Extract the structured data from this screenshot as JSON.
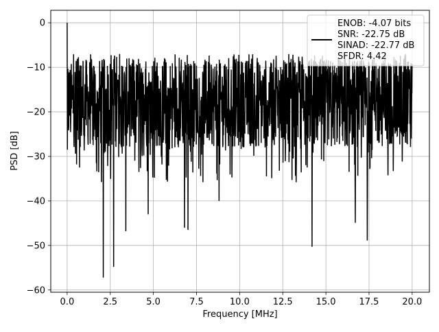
{
  "chart_data": {
    "type": "line",
    "xlabel": "Frequency [MHz]",
    "ylabel": "PSD [dB]",
    "xlim": [
      -0.95,
      21.0
    ],
    "ylim": [
      -60.5,
      2.8
    ],
    "xticks": [
      0.0,
      2.5,
      5.0,
      7.5,
      10.0,
      12.5,
      15.0,
      17.5,
      20.0
    ],
    "xtick_labels": [
      "0.0",
      "2.5",
      "5.0",
      "7.5",
      "10.0",
      "12.5",
      "15.0",
      "17.5",
      "20.0"
    ],
    "yticks": [
      0,
      -10,
      -20,
      -30,
      -40,
      -50,
      -60
    ],
    "ytick_labels": [
      "0",
      "−10",
      "−20",
      "−30",
      "−40",
      "−50",
      "−60"
    ],
    "grid": true,
    "legend_location": "top-right",
    "legend": [
      "ENOB: -4.07 bits",
      "SNR: -22.75 dB",
      "SINAD: -22.77 dB",
      "SFDR: 4.42"
    ],
    "series_color": "#000000",
    "x_start": 0.0,
    "x_end": 20.0,
    "series_description": "Noise-like spectrum fluctuating between about -8 and -28 dB across 0–20 MHz, single peak at 0 dB at 0 MHz.",
    "notable_points": [
      {
        "x": 0.0,
        "y": 0.0
      },
      {
        "x": 2.1,
        "y": -57.2
      },
      {
        "x": 2.7,
        "y": -54.8
      },
      {
        "x": 3.4,
        "y": -46.8
      },
      {
        "x": 4.7,
        "y": -43.0
      },
      {
        "x": 6.8,
        "y": -46.0
      },
      {
        "x": 7.0,
        "y": -46.5
      },
      {
        "x": 8.8,
        "y": -40.0
      },
      {
        "x": 14.2,
        "y": -50.3
      },
      {
        "x": 17.4,
        "y": -48.9
      },
      {
        "x": 16.7,
        "y": -44.9
      }
    ]
  }
}
